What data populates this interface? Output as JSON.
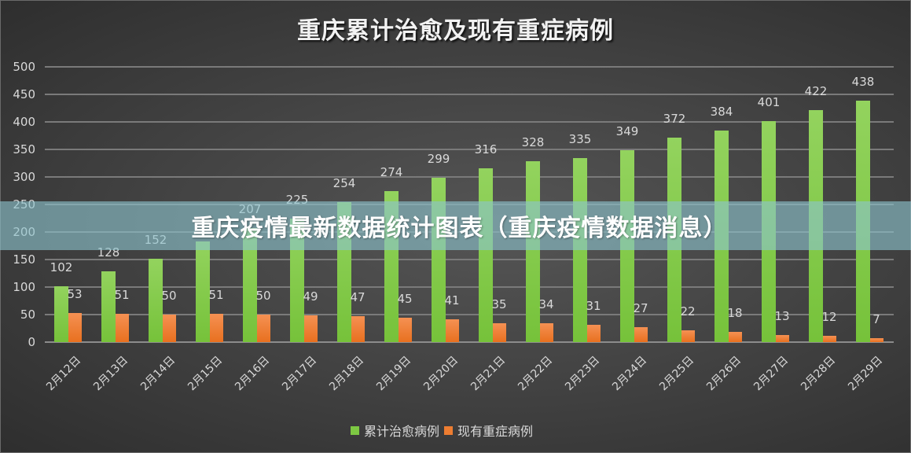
{
  "chart_data": {
    "type": "bar",
    "title": "重庆累计治愈及现有重症病例",
    "xlabel": "",
    "ylabel": "",
    "ylim": [
      0,
      500
    ],
    "yticks": [
      0,
      50,
      100,
      150,
      200,
      250,
      300,
      350,
      400,
      450,
      500
    ],
    "grid": true,
    "legend_position": "bottom",
    "categories": [
      "2月12日",
      "2月13日",
      "2月14日",
      "2月15日",
      "2月16日",
      "2月17日",
      "2月18日",
      "2月19日",
      "2月20日",
      "2月21日",
      "2月22日",
      "2月23日",
      "2月24日",
      "2月25日",
      "2月26日",
      "2月27日",
      "2月28日",
      "2月29日"
    ],
    "series": [
      {
        "name": "累计治愈病例",
        "color": "#7dc843",
        "values": [
          102,
          128,
          152,
          183,
          207,
          225,
          254,
          274,
          299,
          316,
          328,
          335,
          349,
          372,
          384,
          401,
          422,
          438
        ],
        "labels": [
          "102",
          "128",
          "152",
          "",
          "207",
          "225",
          "254",
          "274",
          "299",
          "316",
          "328",
          "335",
          "349",
          "372",
          "384",
          "401",
          "422",
          "438"
        ]
      },
      {
        "name": "现有重症病例",
        "color": "#ed7d31",
        "values": [
          53,
          51,
          50,
          51,
          50,
          49,
          47,
          45,
          41,
          35,
          34,
          31,
          27,
          22,
          18,
          13,
          12,
          7
        ],
        "labels": [
          "53",
          "51",
          "50",
          "51",
          "50",
          "49",
          "47",
          "45",
          "41",
          "35",
          "34",
          "31",
          "27",
          "22",
          "18",
          "13",
          "12",
          "7"
        ]
      }
    ]
  },
  "overlay": {
    "banner_text": "重庆疫情最新数据统计图表（重庆疫情数据消息）"
  }
}
